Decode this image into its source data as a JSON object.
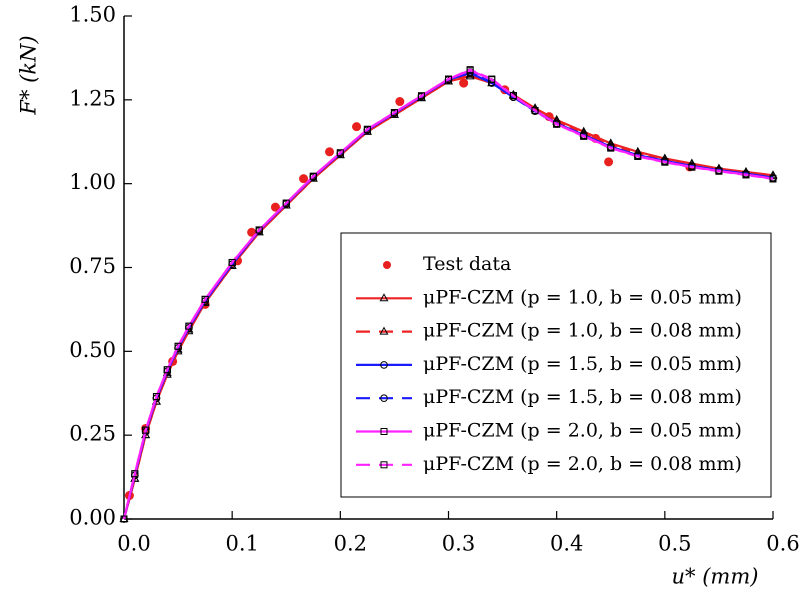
{
  "chart_data": {
    "type": "line",
    "xlabel": "u* (mm)",
    "ylabel": "F* (kN)",
    "xlim": [
      0,
      0.6
    ],
    "ylim": [
      0,
      1.5
    ],
    "xticks": [
      {
        "value": 0,
        "label": "0.0"
      },
      0.1,
      0.2,
      0.3,
      0.4,
      0.5,
      0.6
    ],
    "yticks": [
      {
        "value": 0,
        "label": "0.00"
      },
      {
        "value": 0.25,
        "label": "0.25"
      },
      {
        "value": 0.5,
        "label": "0.50"
      },
      {
        "value": 0.75,
        "label": "0.75"
      },
      {
        "value": 1,
        "label": "1.00"
      },
      {
        "value": 1.25,
        "label": "1.25"
      },
      {
        "value": 1.5,
        "label": "1.50"
      }
    ],
    "series": [
      {
        "name": "Test data",
        "type": "scatter",
        "color": "#e8211f",
        "x": [
          0.005,
          0.02,
          0.045,
          0.075,
          0.105,
          0.118,
          0.14,
          0.166,
          0.19,
          0.215,
          0.255,
          0.314,
          0.352,
          0.393,
          0.436,
          0.448,
          0.523
        ],
        "values": [
          0.07,
          0.27,
          0.47,
          0.64,
          0.77,
          0.855,
          0.93,
          1.015,
          1.095,
          1.17,
          1.245,
          1.3,
          1.28,
          1.2,
          1.135,
          1.065,
          1.05
        ]
      },
      {
        "name": "μPF-CZM (p = 1.0, b = 0.05 mm)",
        "color": "#ee2222",
        "marker": "triangle",
        "dash": false,
        "x": [
          0,
          0.01,
          0.02,
          0.03,
          0.04,
          0.05,
          0.06,
          0.075,
          0.1,
          0.125,
          0.15,
          0.175,
          0.2,
          0.225,
          0.25,
          0.275,
          0.3,
          0.32,
          0.34,
          0.36,
          0.38,
          0.4,
          0.425,
          0.45,
          0.475,
          0.5,
          0.525,
          0.55,
          0.575,
          0.6
        ],
        "values": [
          0,
          0.12,
          0.25,
          0.35,
          0.43,
          0.5,
          0.56,
          0.645,
          0.755,
          0.855,
          0.935,
          1.015,
          1.085,
          1.155,
          1.205,
          1.255,
          1.305,
          1.32,
          1.3,
          1.265,
          1.225,
          1.19,
          1.155,
          1.12,
          1.095,
          1.075,
          1.06,
          1.045,
          1.035,
          1.025
        ]
      },
      {
        "name": "μPF-CZM (p = 1.0, b = 0.08 mm)",
        "color": "#ee2222",
        "marker": "triangle",
        "dash": true,
        "x": [
          0,
          0.01,
          0.02,
          0.03,
          0.04,
          0.05,
          0.06,
          0.075,
          0.1,
          0.125,
          0.15,
          0.175,
          0.2,
          0.225,
          0.25,
          0.275,
          0.3,
          0.32,
          0.34,
          0.36,
          0.38,
          0.4,
          0.425,
          0.45,
          0.475,
          0.5,
          0.525,
          0.55,
          0.575,
          0.6
        ],
        "values": [
          0,
          0.12,
          0.25,
          0.35,
          0.435,
          0.505,
          0.565,
          0.645,
          0.755,
          0.855,
          0.935,
          1.015,
          1.085,
          1.155,
          1.205,
          1.255,
          1.305,
          1.325,
          1.3,
          1.262,
          1.222,
          1.185,
          1.15,
          1.115,
          1.09,
          1.072,
          1.058,
          1.043,
          1.033,
          1.022
        ]
      },
      {
        "name": "μPF-CZM (p = 1.5, b = 0.05 mm)",
        "color": "#1a1aff",
        "marker": "circle",
        "dash": false,
        "x": [
          0,
          0.01,
          0.02,
          0.03,
          0.04,
          0.05,
          0.06,
          0.075,
          0.1,
          0.125,
          0.15,
          0.175,
          0.2,
          0.225,
          0.25,
          0.275,
          0.3,
          0.32,
          0.34,
          0.36,
          0.38,
          0.4,
          0.425,
          0.45,
          0.475,
          0.5,
          0.525,
          0.55,
          0.575,
          0.6
        ],
        "values": [
          0,
          0.13,
          0.26,
          0.36,
          0.44,
          0.51,
          0.57,
          0.65,
          0.76,
          0.86,
          0.94,
          1.02,
          1.09,
          1.16,
          1.21,
          1.26,
          1.31,
          1.33,
          1.3,
          1.258,
          1.218,
          1.18,
          1.145,
          1.11,
          1.085,
          1.068,
          1.053,
          1.04,
          1.03,
          1.018
        ]
      },
      {
        "name": "μPF-CZM (p = 1.5, b = 0.08 mm)",
        "color": "#1a1aff",
        "marker": "circle",
        "dash": true,
        "x": [
          0,
          0.01,
          0.02,
          0.03,
          0.04,
          0.05,
          0.06,
          0.075,
          0.1,
          0.125,
          0.15,
          0.175,
          0.2,
          0.225,
          0.25,
          0.275,
          0.3,
          0.32,
          0.34,
          0.36,
          0.38,
          0.4,
          0.425,
          0.45,
          0.475,
          0.5,
          0.525,
          0.55,
          0.575,
          0.6
        ],
        "values": [
          0,
          0.13,
          0.26,
          0.36,
          0.44,
          0.51,
          0.57,
          0.65,
          0.76,
          0.86,
          0.94,
          1.02,
          1.09,
          1.16,
          1.21,
          1.26,
          1.31,
          1.333,
          1.302,
          1.258,
          1.216,
          1.178,
          1.143,
          1.108,
          1.083,
          1.066,
          1.052,
          1.039,
          1.028,
          1.016
        ]
      },
      {
        "name": "μPF-CZM (p = 2.0, b = 0.05 mm)",
        "color": "#ff22ff",
        "marker": "square",
        "dash": false,
        "x": [
          0,
          0.01,
          0.02,
          0.03,
          0.04,
          0.05,
          0.06,
          0.075,
          0.1,
          0.125,
          0.15,
          0.175,
          0.2,
          0.225,
          0.25,
          0.275,
          0.3,
          0.32,
          0.34,
          0.36,
          0.38,
          0.4,
          0.425,
          0.45,
          0.475,
          0.5,
          0.525,
          0.55,
          0.575,
          0.6
        ],
        "values": [
          0,
          0.135,
          0.265,
          0.365,
          0.445,
          0.515,
          0.575,
          0.655,
          0.765,
          0.862,
          0.942,
          1.022,
          1.092,
          1.162,
          1.212,
          1.262,
          1.312,
          1.338,
          1.31,
          1.262,
          1.218,
          1.178,
          1.142,
          1.107,
          1.082,
          1.065,
          1.05,
          1.038,
          1.027,
          1.015
        ]
      },
      {
        "name": "μPF-CZM (p = 2.0, b = 0.08 mm)",
        "color": "#ff22ff",
        "marker": "square",
        "dash": true,
        "x": [
          0,
          0.01,
          0.02,
          0.03,
          0.04,
          0.05,
          0.06,
          0.075,
          0.1,
          0.125,
          0.15,
          0.175,
          0.2,
          0.225,
          0.25,
          0.275,
          0.3,
          0.32,
          0.34,
          0.36,
          0.38,
          0.4,
          0.425,
          0.45,
          0.475,
          0.5,
          0.525,
          0.55,
          0.575,
          0.6
        ],
        "values": [
          0,
          0.135,
          0.265,
          0.365,
          0.445,
          0.515,
          0.575,
          0.655,
          0.765,
          0.862,
          0.942,
          1.022,
          1.092,
          1.162,
          1.212,
          1.262,
          1.312,
          1.34,
          1.312,
          1.263,
          1.218,
          1.177,
          1.141,
          1.106,
          1.081,
          1.064,
          1.049,
          1.037,
          1.026,
          1.014
        ]
      }
    ]
  }
}
